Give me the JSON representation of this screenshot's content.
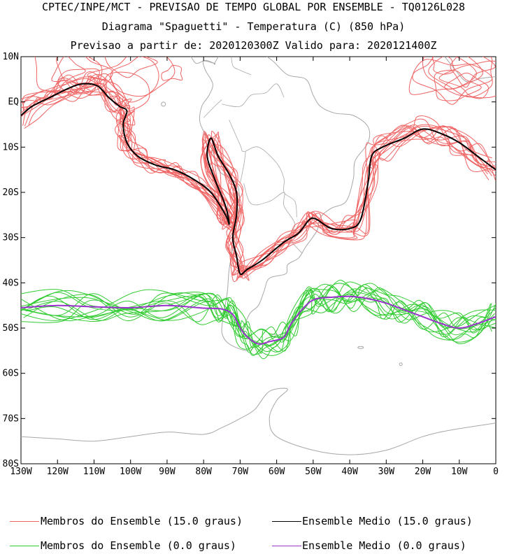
{
  "title": {
    "line1": "CPTEC/INPE/MCT - PREVISAO DE TEMPO GLOBAL POR ENSEMBLE - TQ0126L028",
    "line2": "Diagrama \"Spaguetti\" - Temperatura (C) (850 hPa)",
    "line3": "Previsao a partir de: 2020120300Z  Valido para: 2020121400Z"
  },
  "axes": {
    "lat_labels": [
      "10N",
      "EQ",
      "10S",
      "20S",
      "30S",
      "40S",
      "50S",
      "60S",
      "70S",
      "80S"
    ],
    "lat_values": [
      10,
      0,
      -10,
      -20,
      -30,
      -40,
      -50,
      -60,
      -70,
      -80
    ],
    "lon_labels": [
      "130W",
      "120W",
      "110W",
      "100W",
      "90W",
      "80W",
      "70W",
      "60W",
      "50W",
      "40W",
      "30W",
      "20W",
      "10W",
      "0"
    ],
    "lon_values": [
      -130,
      -120,
      -110,
      -100,
      -90,
      -80,
      -70,
      -60,
      -50,
      -40,
      -30,
      -20,
      -10,
      0
    ],
    "lon_range": [
      -130,
      0
    ],
    "lat_range": [
      -80,
      10
    ]
  },
  "legend": {
    "items": [
      {
        "label": "Membros do Ensemble (15.0 graus)",
        "color": "#f06464"
      },
      {
        "label": "Ensemble Medio (15.0 graus)",
        "color": "#000000"
      },
      {
        "label": "Membros do Ensemble (0.0 graus)",
        "color": "#33cc33"
      },
      {
        "label": "Ensemble Medio (0.0 graus)",
        "color": "#9933cc"
      }
    ]
  },
  "colors": {
    "coast": "#a8a8a8",
    "member15": "#f06464",
    "mean15": "#000000",
    "member0": "#33cc33",
    "mean0": "#9933cc"
  },
  "contours": {
    "mean15": [
      [
        -130,
        -3
      ],
      [
        -127,
        -1
      ],
      [
        -122,
        1
      ],
      [
        -117,
        3
      ],
      [
        -113,
        4
      ],
      [
        -109,
        3.5
      ],
      [
        -106,
        1
      ],
      [
        -103,
        -1
      ],
      [
        -101,
        -2
      ],
      [
        -102,
        -5
      ],
      [
        -101,
        -9
      ],
      [
        -98,
        -12
      ],
      [
        -93,
        -14
      ],
      [
        -88,
        -15
      ],
      [
        -83,
        -17
      ],
      [
        -78,
        -20
      ],
      [
        -74,
        -25
      ],
      [
        -73,
        -27
      ],
      [
        -74,
        -23
      ],
      [
        -77,
        -17
      ],
      [
        -79,
        -12
      ],
      [
        -78,
        -8
      ],
      [
        -76,
        -12
      ],
      [
        -73,
        -16
      ],
      [
        -71,
        -20
      ],
      [
        -71,
        -25
      ],
      [
        -72,
        -30
      ],
      [
        -71,
        -34
      ],
      [
        -70,
        -38
      ],
      [
        -68,
        -37
      ],
      [
        -64,
        -35
      ],
      [
        -58,
        -31
      ],
      [
        -54,
        -29
      ],
      [
        -51,
        -26
      ],
      [
        -49,
        -26
      ],
      [
        -45,
        -28
      ],
      [
        -40,
        -28
      ],
      [
        -37,
        -26
      ],
      [
        -35,
        -18
      ],
      [
        -34,
        -12
      ],
      [
        -31,
        -10
      ],
      [
        -25,
        -8
      ],
      [
        -20,
        -6
      ],
      [
        -15,
        -7
      ],
      [
        -10,
        -9
      ],
      [
        -5,
        -12
      ],
      [
        0,
        -15
      ]
    ],
    "mean0": [
      [
        -130,
        -45.5
      ],
      [
        -120,
        -45
      ],
      [
        -110,
        -45.3
      ],
      [
        -100,
        -45.5
      ],
      [
        -90,
        -45
      ],
      [
        -80,
        -45.6
      ],
      [
        -75,
        -45.8
      ],
      [
        -72,
        -47
      ],
      [
        -70,
        -50
      ],
      [
        -68,
        -52
      ],
      [
        -65,
        -53.5
      ],
      [
        -62,
        -53
      ],
      [
        -58,
        -52
      ],
      [
        -56,
        -49
      ],
      [
        -52,
        -45
      ],
      [
        -49,
        -43.5
      ],
      [
        -45,
        -43.2
      ],
      [
        -40,
        -43
      ],
      [
        -35,
        -43.5
      ],
      [
        -30,
        -44.5
      ],
      [
        -25,
        -46
      ],
      [
        -20,
        -47.5
      ],
      [
        -15,
        -49
      ],
      [
        -10,
        -50
      ],
      [
        -5,
        -49
      ],
      [
        0,
        -47.5
      ]
    ]
  }
}
